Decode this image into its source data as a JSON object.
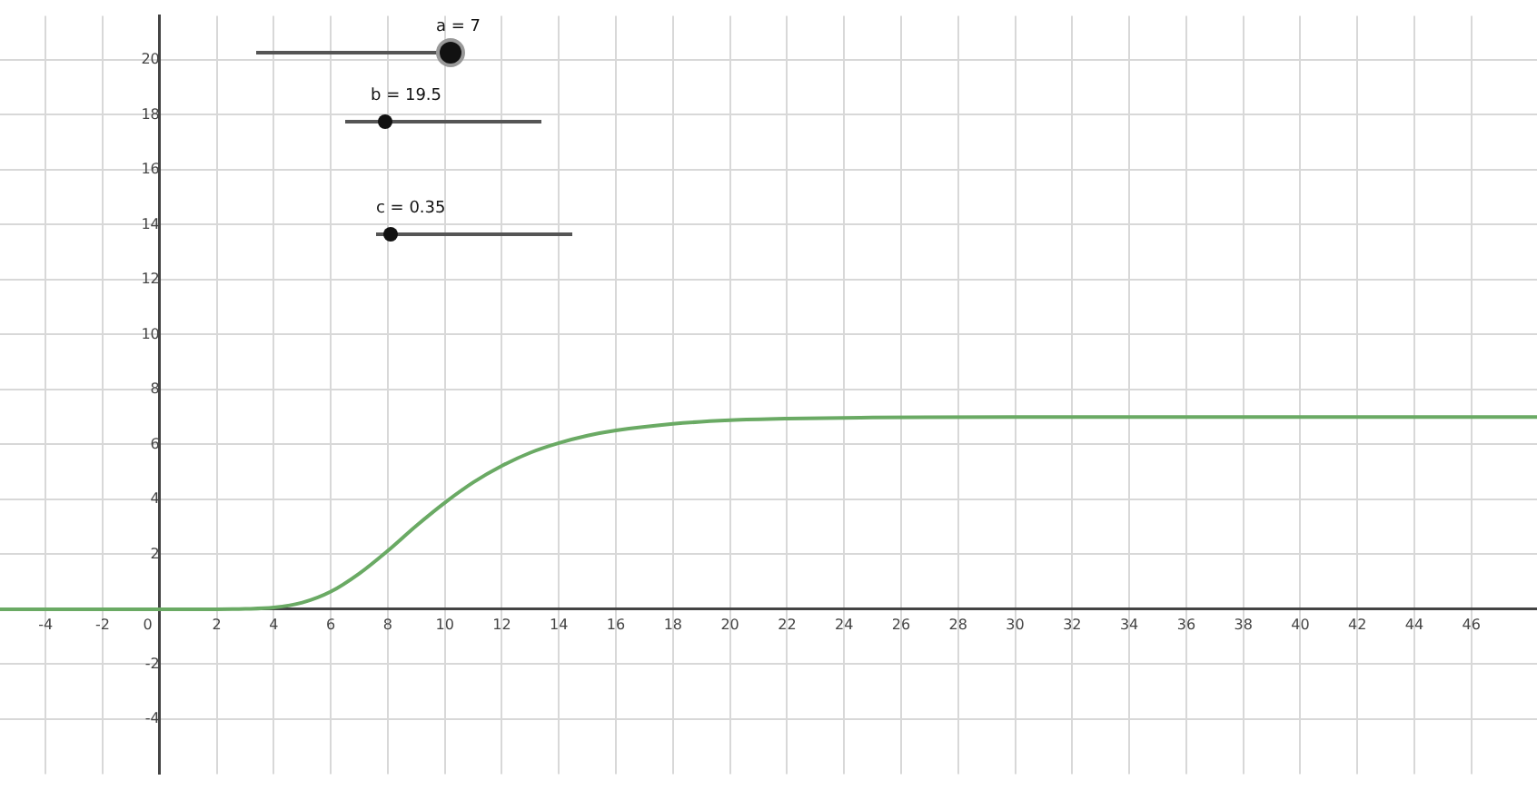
{
  "chart_data": {
    "type": "line",
    "x": [
      -5.6,
      0,
      2,
      3,
      4,
      5,
      6,
      7,
      8,
      9,
      10,
      11,
      12,
      13,
      14,
      15,
      16,
      18,
      20,
      22,
      25,
      30,
      40,
      48.3
    ],
    "series": [
      {
        "color": "#6aaa64",
        "values": [
          0,
          0,
          0,
          0.01,
          0.06,
          0.24,
          0.64,
          1.3,
          2.13,
          3.04,
          3.88,
          4.62,
          5.22,
          5.7,
          6.05,
          6.32,
          6.51,
          6.75,
          6.88,
          6.94,
          6.98,
          7,
          7,
          7
        ]
      }
    ],
    "xlim": [
      -5.6,
      48.3
    ],
    "ylim": [
      -6,
      21.6
    ],
    "xticks": [
      -4,
      -2,
      0,
      2,
      4,
      6,
      8,
      10,
      12,
      14,
      16,
      18,
      20,
      22,
      24,
      26,
      28,
      30,
      32,
      34,
      36,
      38,
      40,
      42,
      44,
      46
    ],
    "yticks": [
      -4,
      -2,
      2,
      4,
      6,
      8,
      10,
      12,
      14,
      16,
      18,
      20
    ],
    "grid": true,
    "marker": "none",
    "line_style": "solid",
    "legend": false,
    "annotations": [
      "a = 7",
      "b = 19.5",
      "c = 0.35"
    ]
  }
}
